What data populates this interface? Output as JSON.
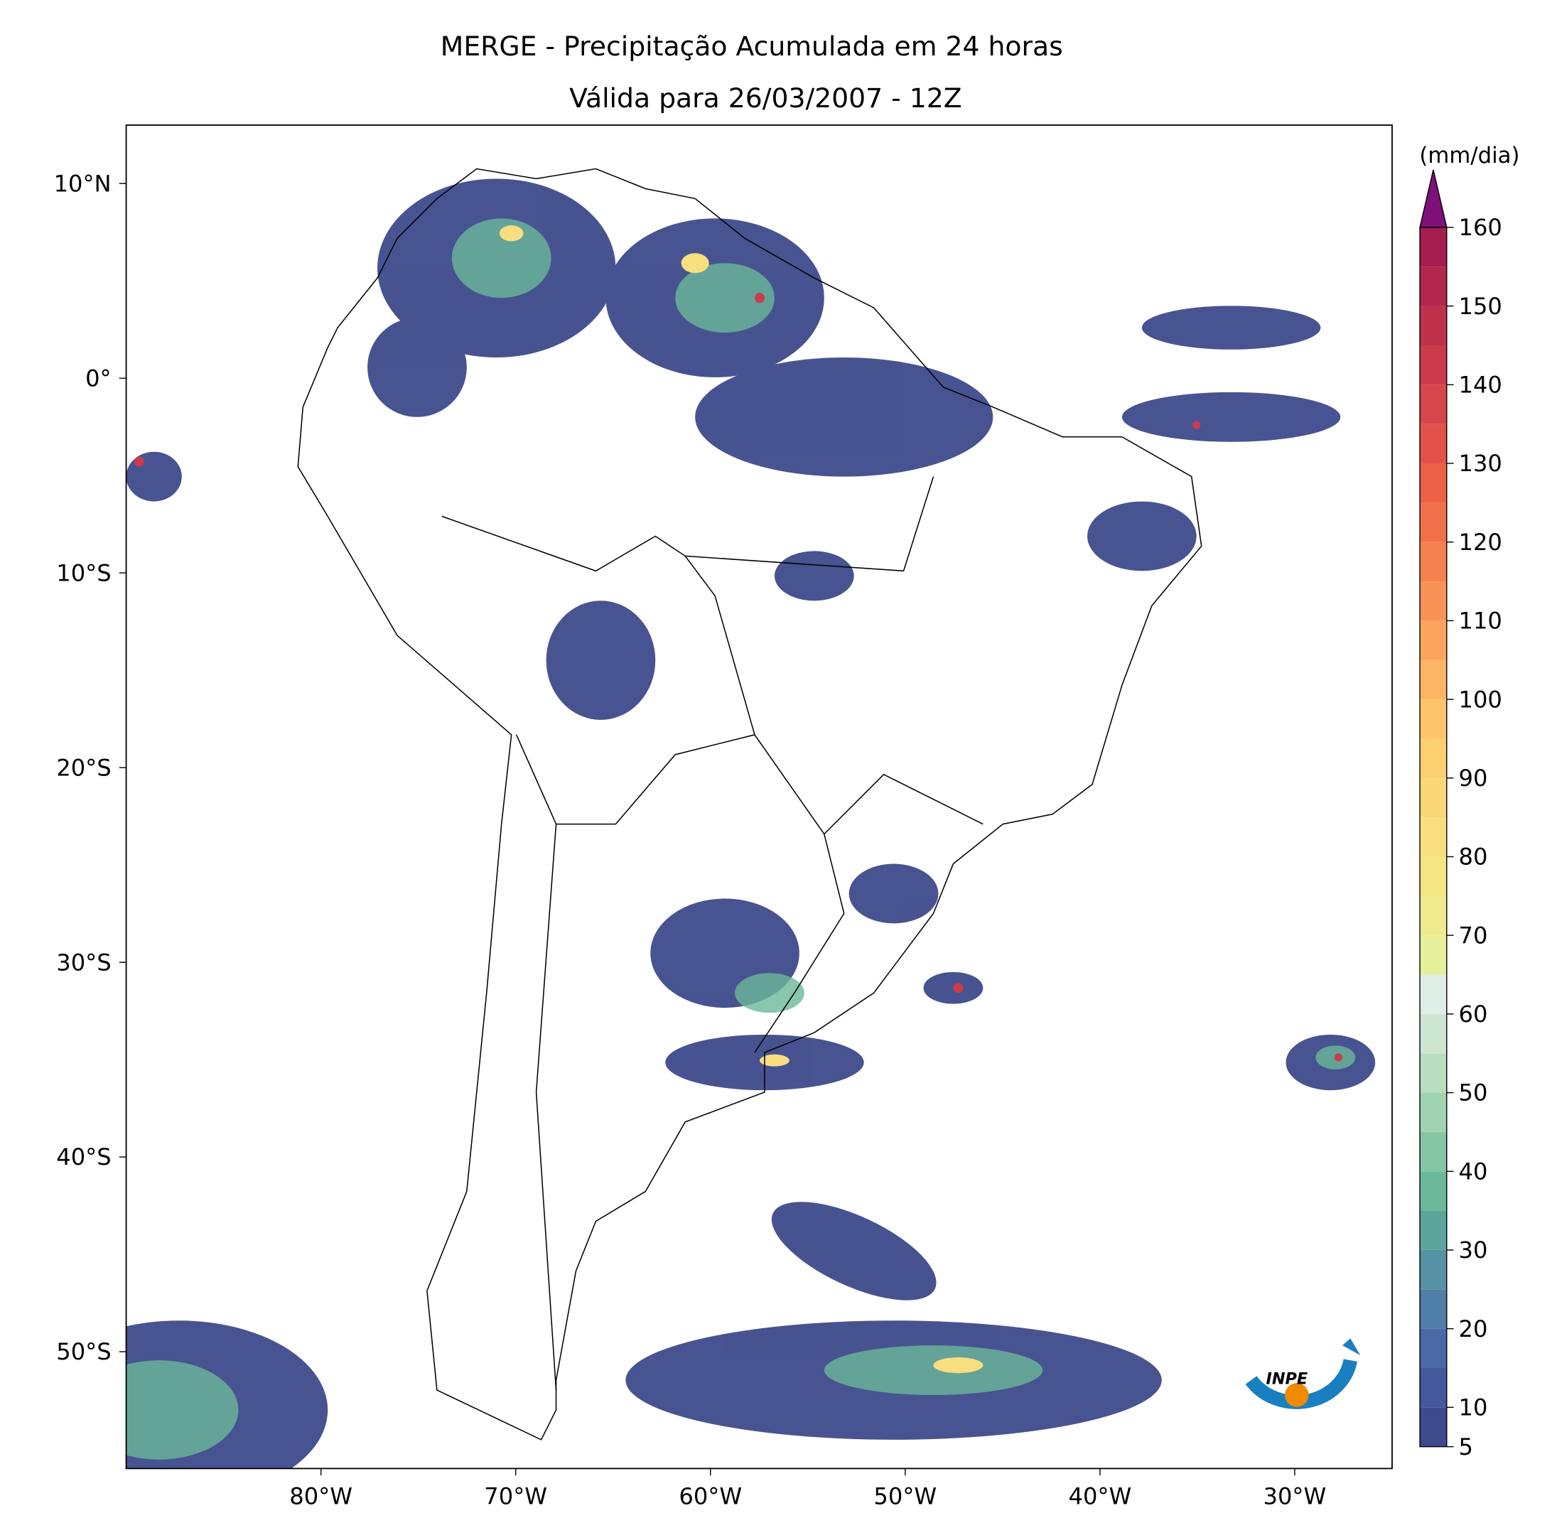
{
  "title": "MERGE - Precipitação Acumulada em 24 horas",
  "subtitle": "Válida para 26/03/2007 - 12Z",
  "map": {
    "xlim": [
      -90,
      -25
    ],
    "ylim": [
      -56,
      13
    ],
    "xticks": [
      {
        "value": -80,
        "label": "80°W"
      },
      {
        "value": -70,
        "label": "70°W"
      },
      {
        "value": -60,
        "label": "60°W"
      },
      {
        "value": -50,
        "label": "50°W"
      },
      {
        "value": -40,
        "label": "40°W"
      },
      {
        "value": -30,
        "label": "30°W"
      }
    ],
    "yticks": [
      {
        "value": 10,
        "label": "10°N"
      },
      {
        "value": 0,
        "label": "0°"
      },
      {
        "value": -10,
        "label": "10°S"
      },
      {
        "value": -20,
        "label": "20°S"
      },
      {
        "value": -30,
        "label": "30°S"
      },
      {
        "value": -40,
        "label": "40°S"
      },
      {
        "value": -50,
        "label": "50°S"
      }
    ]
  },
  "colorbar": {
    "unit": "(mm/dia)",
    "levels": [
      5,
      10,
      15,
      20,
      25,
      30,
      35,
      40,
      45,
      50,
      55,
      60,
      65,
      70,
      75,
      80,
      85,
      90,
      95,
      100,
      105,
      110,
      115,
      120,
      125,
      130,
      135,
      140,
      145,
      150,
      155,
      160
    ],
    "colors": [
      "#3e4a8b",
      "#45589b",
      "#4b6aa5",
      "#4f7ea8",
      "#5592a3",
      "#5ca59c",
      "#6cb89a",
      "#85c7a4",
      "#a0d3b1",
      "#b9ddc1",
      "#cde6d2",
      "#dfeee6",
      "#e6f09a",
      "#eeeb8f",
      "#f4e585",
      "#f8de7e",
      "#fad777",
      "#fccf71",
      "#fdc46b",
      "#fcb564",
      "#faa45d",
      "#f89357",
      "#f58150",
      "#f1704a",
      "#ec6045",
      "#e2524a",
      "#d7464a",
      "#cc3b4b",
      "#c0314c",
      "#b3264d",
      "#a51c4e"
    ],
    "extend_color": "#7f0f7a",
    "ticks": [
      5,
      10,
      20,
      30,
      40,
      50,
      60,
      70,
      80,
      90,
      100,
      110,
      120,
      130,
      140,
      150,
      160
    ]
  },
  "logo_text": "INPE"
}
